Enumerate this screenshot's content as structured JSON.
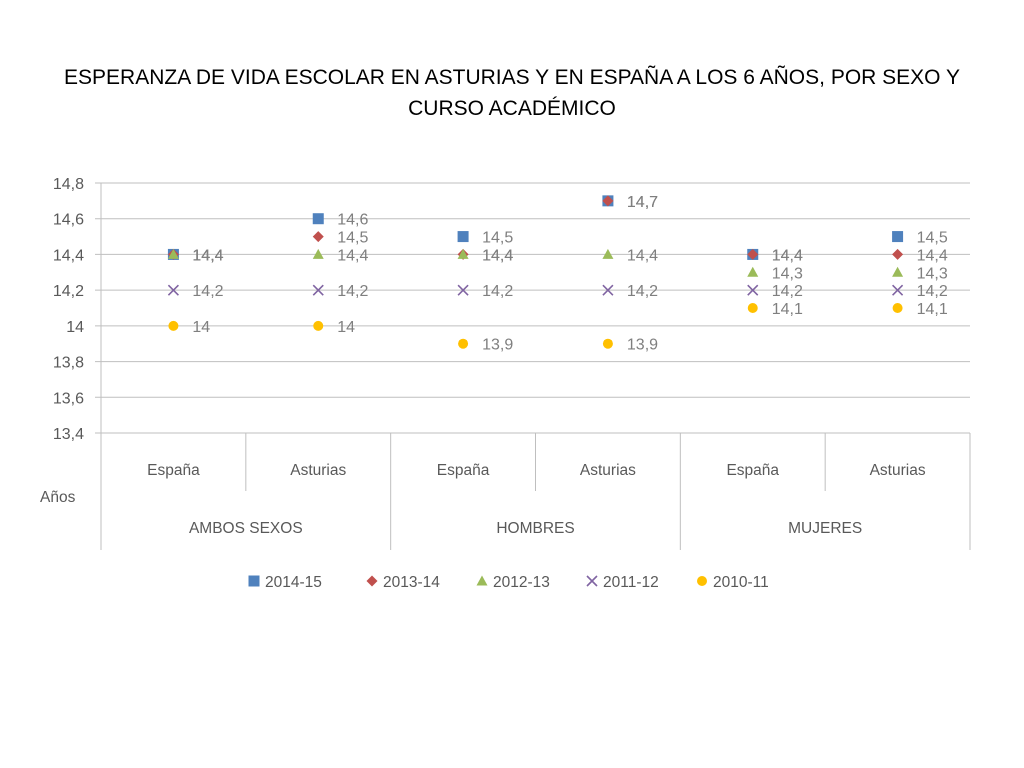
{
  "chart_data": {
    "type": "scatter",
    "title": "ESPERANZA DE VIDA ESCOLAR EN ASTURIAS Y EN ESPAÑA A LOS 6 AÑOS, POR SEXO Y CURSO ACADÉMICO",
    "xlabel": "Años",
    "ylim": [
      13.4,
      14.8
    ],
    "y_ticks": [
      "13,4",
      "13,6",
      "13,8",
      "14",
      "14,2",
      "14,4",
      "14,6",
      "14,8"
    ],
    "groups": [
      "AMBOS SEXOS",
      "HOMBRES",
      "MUJERES"
    ],
    "categories": [
      "España",
      "Asturias",
      "España",
      "Asturias",
      "España",
      "Asturias"
    ],
    "grid": true,
    "legend_position": "bottom",
    "series": [
      {
        "name": "2014-15",
        "marker": "square",
        "color": "#4f81bd",
        "values": [
          14.4,
          14.6,
          14.5,
          14.7,
          14.4,
          14.5
        ],
        "labels": [
          "14,4",
          "14,6",
          "14,5",
          "14,7",
          "14,4",
          "14,5"
        ]
      },
      {
        "name": "2013-14",
        "marker": "diamond",
        "color": "#c0504d",
        "values": [
          14.4,
          14.5,
          14.4,
          14.7,
          14.4,
          14.4
        ],
        "labels": [
          "14,4",
          "14,5",
          "14,4",
          "14,7",
          "14,4",
          "14,4"
        ]
      },
      {
        "name": "2012-13",
        "marker": "triangle",
        "color": "#9bbb59",
        "values": [
          14.4,
          14.4,
          14.4,
          14.4,
          14.3,
          14.3
        ],
        "labels": [
          "14,4",
          "14,4",
          "14,4",
          "14,4",
          "14,3",
          "14,3"
        ]
      },
      {
        "name": "2011-12",
        "marker": "x",
        "color": "#8064a2",
        "values": [
          14.2,
          14.2,
          14.2,
          14.2,
          14.2,
          14.2
        ],
        "labels": [
          "14,2",
          "14,2",
          "14,2",
          "14,2",
          "14,2",
          "14,2"
        ]
      },
      {
        "name": "2010-11",
        "marker": "circle",
        "color": "#ffc000",
        "values": [
          14.0,
          14.0,
          13.9,
          13.9,
          14.1,
          14.1
        ],
        "labels": [
          "14",
          "14",
          "13,9",
          "13,9",
          "14,1",
          "14,1"
        ]
      }
    ]
  }
}
